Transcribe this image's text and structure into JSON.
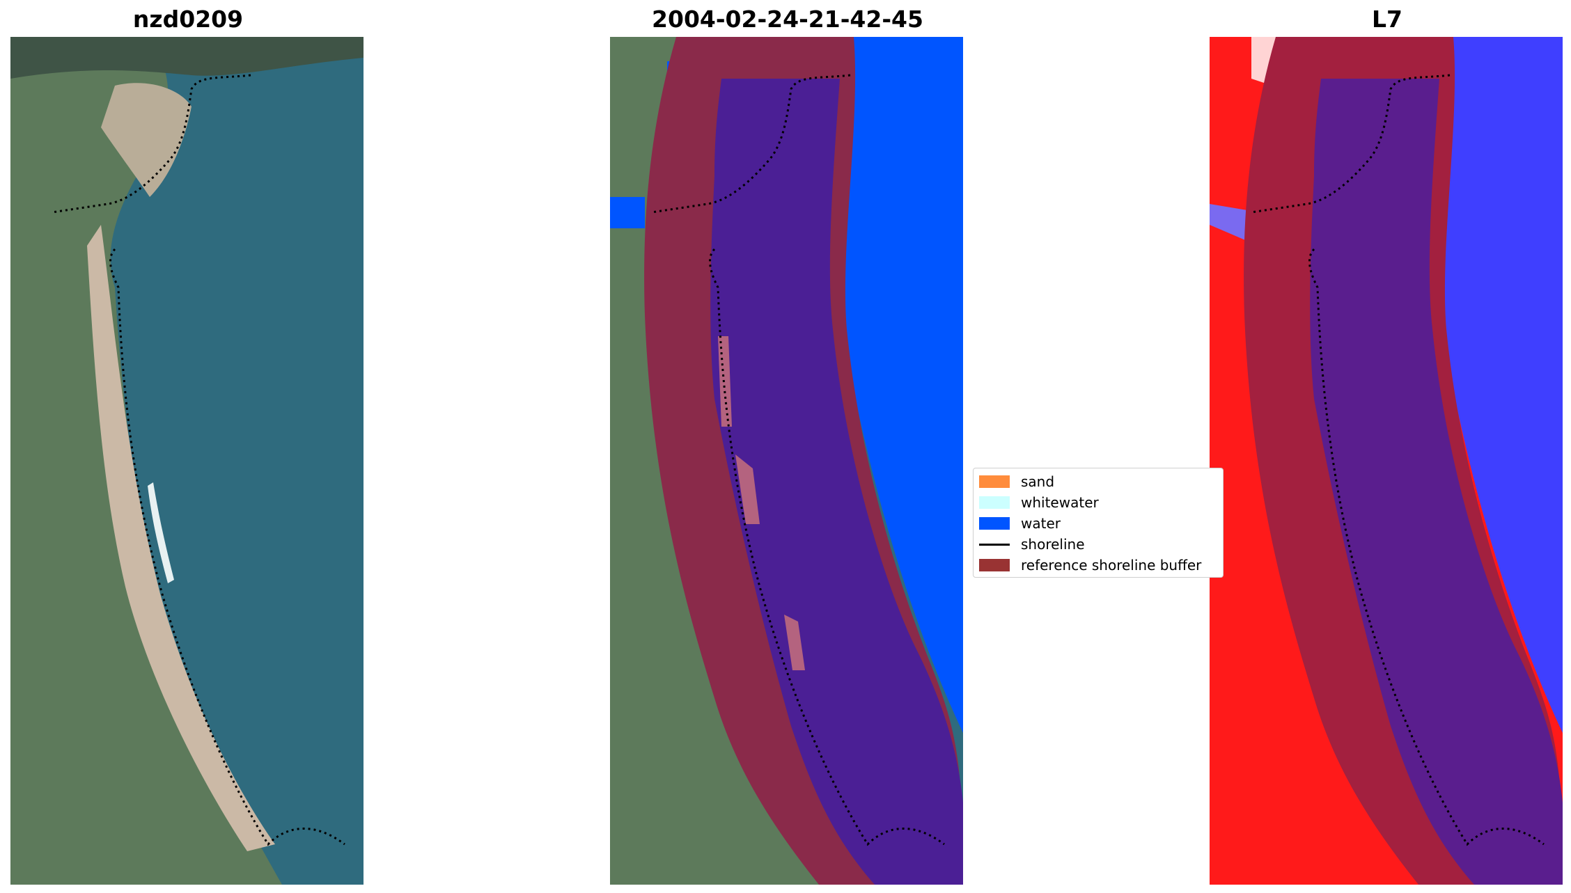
{
  "panels": [
    {
      "title": "nzd0209",
      "kind": "rgb-image"
    },
    {
      "title": "2004-02-24-21-42-45",
      "kind": "classified-overlay"
    },
    {
      "title": "L7",
      "kind": "index-overlay"
    }
  ],
  "legend": {
    "items": [
      {
        "label": "sand",
        "color": "#ff8c3c",
        "symbol": "patch"
      },
      {
        "label": "whitewater",
        "color": "#ccffff",
        "symbol": "patch"
      },
      {
        "label": "water",
        "color": "#0055ff",
        "symbol": "patch"
      },
      {
        "label": "shoreline",
        "color": "#000000",
        "symbol": "line"
      },
      {
        "label": "reference shoreline buffer",
        "color": "#993333",
        "symbol": "patch"
      }
    ]
  },
  "colors": {
    "land": "#5f7a5c",
    "ocean": "#2f6b7e",
    "beach": "#c9b8a5",
    "water_class": "#0055ff",
    "buffer": "#8a2a4a",
    "buffer_water": "#4b1f95",
    "index_high": "#ff1010",
    "index_low": "#3a3aff"
  }
}
